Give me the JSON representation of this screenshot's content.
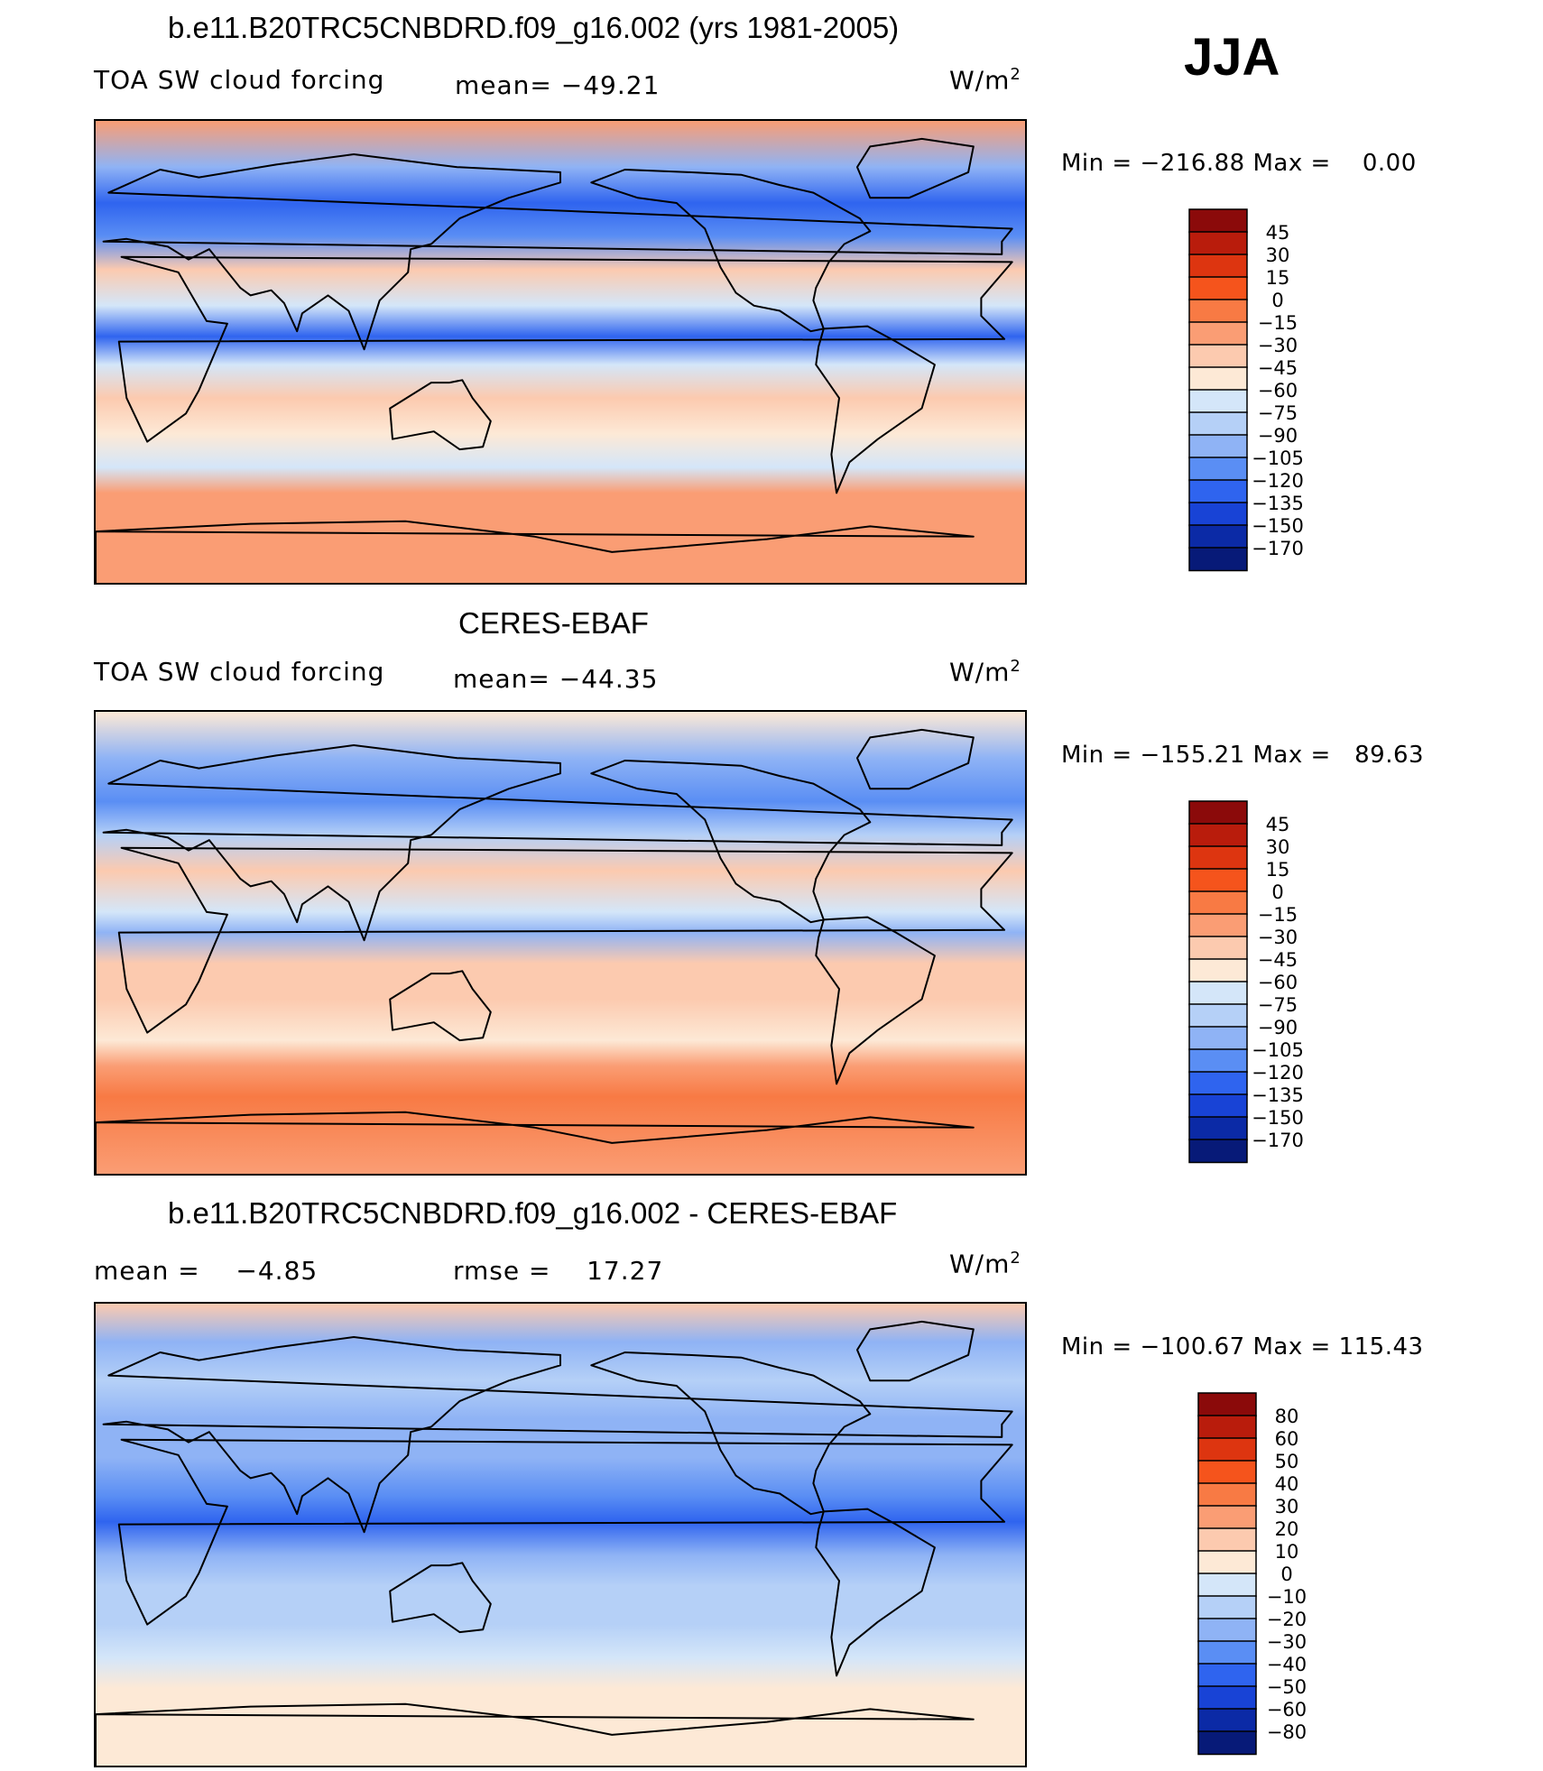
{
  "season": "JJA",
  "chart_data": [
    {
      "type": "heatmap",
      "title": "b.e11.B20TRC5CNBDRD.f09_g16.002 (yrs 1981-2005)",
      "left_label": "TOA SW cloud forcing",
      "center_label": "mean= −49.21",
      "units_base": "W/m",
      "units_exp": "2",
      "min_label": "Min",
      "min_value": "−216.88",
      "max_label": "Max",
      "max_value": "0.00",
      "colorbar_levels": [
        "45",
        "30",
        "15",
        "0",
        "−15",
        "−30",
        "−45",
        "−60",
        "−75",
        "−90",
        "−105",
        "−120",
        "−135",
        "−150",
        "−170"
      ],
      "colorbar_colors": [
        "#8b0a0a",
        "#b91c0c",
        "#dd3510",
        "#f5541c",
        "#f87a44",
        "#fa9d74",
        "#fccaaf",
        "#fde9d6",
        "#d4e6f9",
        "#b5d0f7",
        "#8fb3f5",
        "#5a8ef4",
        "#2f64ef",
        "#1843d6",
        "#0b2aa6",
        "#071a78"
      ],
      "map_bands": [
        {
          "lat": 90,
          "level": "-15"
        },
        {
          "lat": 72,
          "level": "-90"
        },
        {
          "lat": 58,
          "level": "-120"
        },
        {
          "lat": 45,
          "level": "-105"
        },
        {
          "lat": 32,
          "level": "-30"
        },
        {
          "lat": 18,
          "level": "-60"
        },
        {
          "lat": 6,
          "level": "-120"
        },
        {
          "lat": -5,
          "level": "-60"
        },
        {
          "lat": -18,
          "level": "-30"
        },
        {
          "lat": -32,
          "level": "-45"
        },
        {
          "lat": -45,
          "level": "-60"
        },
        {
          "lat": -55,
          "level": "-15"
        },
        {
          "lat": -90,
          "level": "-15"
        }
      ]
    },
    {
      "type": "heatmap",
      "title": "CERES-EBAF",
      "left_label": "TOA SW cloud forcing",
      "center_label": "mean= −44.35",
      "units_base": "W/m",
      "units_exp": "2",
      "min_label": "Min",
      "min_value": "−155.21",
      "max_label": "Max",
      "max_value": "89.63",
      "colorbar_levels": [
        "45",
        "30",
        "15",
        "0",
        "−15",
        "−30",
        "−45",
        "−60",
        "−75",
        "−90",
        "−105",
        "−120",
        "−135",
        "−150",
        "−170"
      ],
      "colorbar_colors": [
        "#8b0a0a",
        "#b91c0c",
        "#dd3510",
        "#f5541c",
        "#f87a44",
        "#fa9d74",
        "#fccaaf",
        "#fde9d6",
        "#d4e6f9",
        "#b5d0f7",
        "#8fb3f5",
        "#5a8ef4",
        "#2f64ef",
        "#1843d6",
        "#0b2aa6",
        "#071a78"
      ],
      "map_bands": [
        {
          "lat": 90,
          "level": "-45"
        },
        {
          "lat": 72,
          "level": "-90"
        },
        {
          "lat": 55,
          "level": "-105"
        },
        {
          "lat": 42,
          "level": "-75"
        },
        {
          "lat": 28,
          "level": "-30"
        },
        {
          "lat": 12,
          "level": "-60"
        },
        {
          "lat": 4,
          "level": "-90"
        },
        {
          "lat": -8,
          "level": "-30"
        },
        {
          "lat": -22,
          "level": "-30"
        },
        {
          "lat": -38,
          "level": "-45"
        },
        {
          "lat": -48,
          "level": "-15"
        },
        {
          "lat": -60,
          "level": "0"
        },
        {
          "lat": -90,
          "level": "-15"
        }
      ]
    },
    {
      "type": "heatmap",
      "title": "b.e11.B20TRC5CNBDRD.f09_g16.002 - CERES-EBAF",
      "left_label": "mean =",
      "left_value": "−4.85",
      "center_label": "rmse =",
      "center_value": "17.27",
      "units_base": "W/m",
      "units_exp": "2",
      "min_label": "Min",
      "min_value": "−100.67",
      "max_label": "Max",
      "max_value": "115.43",
      "colorbar_levels": [
        "80",
        "60",
        "50",
        "40",
        "30",
        "20",
        "10",
        "0",
        "−10",
        "−20",
        "−30",
        "−40",
        "−50",
        "−60",
        "−80"
      ],
      "colorbar_colors": [
        "#8b0a0a",
        "#b91c0c",
        "#dd3510",
        "#f5541c",
        "#f87a44",
        "#fa9d74",
        "#fccaaf",
        "#fde9d6",
        "#d4e6f9",
        "#b5d0f7",
        "#8fb3f5",
        "#5a8ef4",
        "#2f64ef",
        "#1843d6",
        "#0b2aa6",
        "#071a78"
      ],
      "map_bands": [
        {
          "lat": 90,
          "level": "20"
        },
        {
          "lat": 75,
          "level": "-20"
        },
        {
          "lat": 60,
          "level": "-10"
        },
        {
          "lat": 45,
          "level": "-20"
        },
        {
          "lat": 30,
          "level": "-20"
        },
        {
          "lat": 15,
          "level": "-30"
        },
        {
          "lat": 5,
          "level": "-40"
        },
        {
          "lat": -8,
          "level": "-20"
        },
        {
          "lat": -20,
          "level": "-10"
        },
        {
          "lat": -35,
          "level": "-10"
        },
        {
          "lat": -48,
          "level": "0"
        },
        {
          "lat": -60,
          "level": "10"
        },
        {
          "lat": -90,
          "level": "10"
        }
      ]
    }
  ]
}
